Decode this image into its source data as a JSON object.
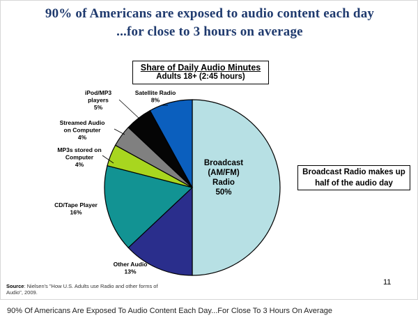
{
  "slide": {
    "title_line1": "90% of Americans are exposed to audio content each day",
    "title_line2": "...for close to 3 hours on average",
    "note": "Broadcast Radio makes up half of the audio day",
    "source_label": "Source",
    "source_text": ": Nielsen's \"How U.S. Adults use Radio and other forms of Audio\", 2009.",
    "page_number": "11"
  },
  "caption": "90% Of Americans Are Exposed To Audio Content Each Day...For Close To 3 Hours On Average",
  "chart_data": {
    "type": "pie",
    "title": "Share of Daily Audio Minutes",
    "subtitle": "Adults 18+ (2:45 hours)",
    "slices": [
      {
        "label_lines": [
          "Broadcast",
          "(AM/FM)",
          "Radio"
        ],
        "value": 50,
        "value_label": "50%",
        "color": "#b7e0e4"
      },
      {
        "label_lines": [
          "Other Audio"
        ],
        "value": 13,
        "value_label": "13%",
        "color": "#2a2e8c"
      },
      {
        "label_lines": [
          "CD/Tape Player"
        ],
        "value": 16,
        "value_label": "16%",
        "color": "#129393"
      },
      {
        "label_lines": [
          "MP3s stored on",
          "Computer"
        ],
        "value": 4,
        "value_label": "4%",
        "color": "#a8d61f"
      },
      {
        "label_lines": [
          "Streamed Audio",
          "on Computer"
        ],
        "value": 4,
        "value_label": "4%",
        "color": "#808080"
      },
      {
        "label_lines": [
          "iPod/MP3",
          "players"
        ],
        "value": 5,
        "value_label": "5%",
        "color": "#050505"
      },
      {
        "label_lines": [
          "Satellite Radio"
        ],
        "value": 8,
        "value_label": "8%",
        "color": "#0b5fbe"
      }
    ]
  }
}
